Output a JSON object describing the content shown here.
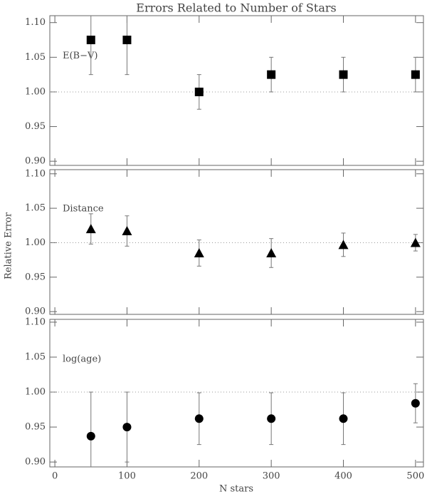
{
  "title": "Errors Related to Number of Stars",
  "xlabel": "N stars",
  "ylabel": "Relative Error",
  "chart_data": [
    {
      "type": "scatter",
      "label": "E(B−V)",
      "marker": "square",
      "color": "#000000",
      "x": [
        50,
        100,
        200,
        300,
        400,
        500
      ],
      "values": [
        1.075,
        1.075,
        1.0,
        1.025,
        1.025,
        1.025
      ],
      "errors": [
        0.05,
        0.05,
        0.025,
        0.025,
        0.025,
        0.025
      ],
      "reference_line": 1,
      "xlim": [
        -7,
        511
      ],
      "xticks": [
        0,
        100,
        200,
        300,
        400,
        500
      ],
      "ylim": [
        0.894,
        1.11
      ],
      "yticks": [
        {
          "value": 0.9,
          "label": "0.90"
        },
        0.95,
        {
          "value": 1,
          "label": "1.00"
        },
        1.05,
        {
          "value": 1.1,
          "label": "1.10"
        }
      ]
    },
    {
      "type": "scatter",
      "label": "Distance",
      "marker": "triangle",
      "color": "#000000",
      "x": [
        50,
        100,
        200,
        300,
        400,
        500
      ],
      "values": [
        1.02,
        1.017,
        0.985,
        0.985,
        0.997,
        1.0
      ],
      "errors": [
        0.022,
        0.022,
        0.019,
        0.021,
        0.017,
        0.012
      ],
      "reference_line": 1,
      "xlim": [
        -7,
        511
      ],
      "xticks": [
        0,
        100,
        200,
        300,
        400,
        500
      ],
      "ylim": [
        0.896,
        1.106
      ],
      "yticks": [
        {
          "value": 0.9,
          "label": "0.90"
        },
        0.95,
        {
          "value": 1,
          "label": "1.00"
        },
        1.05,
        {
          "value": 1.1,
          "label": "1.10"
        }
      ]
    },
    {
      "type": "scatter",
      "label": "log(age)",
      "marker": "circle",
      "color": "#000000",
      "x": [
        50,
        100,
        200,
        300,
        400,
        500
      ],
      "values": [
        0.937,
        0.95,
        0.962,
        0.962,
        0.962,
        0.984
      ],
      "errors": [
        0.063,
        0.05,
        0.037,
        0.037,
        0.037,
        0.028
      ],
      "reference_line": 1,
      "xlim": [
        -7,
        511
      ],
      "xticks": [
        0,
        100,
        200,
        300,
        400,
        500
      ],
      "ylim": [
        0.893,
        1.104
      ],
      "yticks": [
        {
          "value": 0.9,
          "label": "0.90"
        },
        0.95,
        {
          "value": 1,
          "label": "1.00"
        },
        1.05,
        {
          "value": 1.1,
          "label": "1.10"
        }
      ]
    }
  ]
}
